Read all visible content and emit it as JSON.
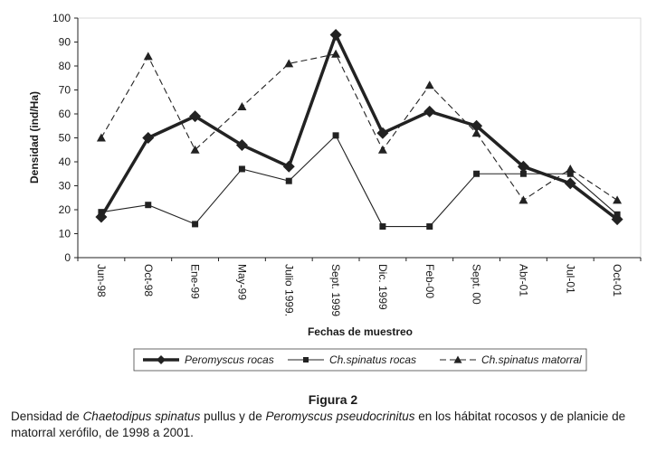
{
  "chart_data": {
    "type": "line",
    "xlabel": "Fechas de muestreo",
    "ylabel": "Densidad (ind/Ha)",
    "ylim": [
      0,
      100
    ],
    "yticks": [
      0,
      10,
      20,
      30,
      40,
      50,
      60,
      70,
      80,
      90,
      100
    ],
    "categories": [
      "Jun-98",
      "Oct-98",
      "Ene-99",
      "May-99",
      "Julio 1999.",
      "Sept. 1999",
      "Dic. 1999",
      "Feb-00",
      "Sept. 00",
      "Abr-01",
      "Jul-01",
      "Oct-01"
    ],
    "series": [
      {
        "name": "Peromyscus rocas",
        "values": [
          17,
          50,
          59,
          47,
          38,
          93,
          52,
          61,
          55,
          38,
          31,
          16
        ],
        "marker": "diamond",
        "style": "thick-solid",
        "color": "#222222"
      },
      {
        "name": "Ch.spinatus rocas",
        "values": [
          19,
          22,
          14,
          37,
          32,
          51,
          13,
          13,
          35,
          35,
          35,
          18
        ],
        "marker": "square",
        "style": "thin-solid",
        "color": "#222222"
      },
      {
        "name": "Ch.spinatus matorral",
        "values": [
          50,
          84,
          45,
          63,
          81,
          85,
          45,
          72,
          52,
          24,
          37,
          24
        ],
        "marker": "triangle",
        "style": "dashed",
        "color": "#222222"
      }
    ],
    "grid": false,
    "legend_position": "bottom"
  },
  "figure": {
    "title": "Figura 2",
    "caption_parts": [
      "Densidad de ",
      "Chaetodipus spinatus",
      " pullus y de ",
      "Peromyscus pseudocrinitus",
      " en los hábitat rocosos y de planicie de matorral xerófilo, de 1998 a 2001."
    ]
  }
}
